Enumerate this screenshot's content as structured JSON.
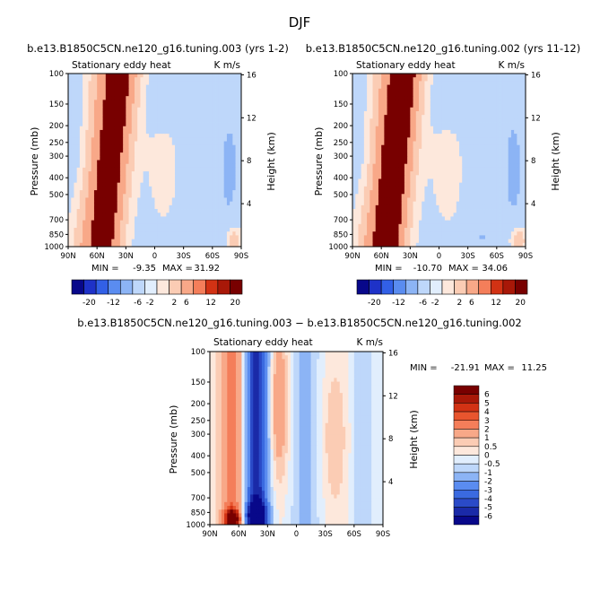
{
  "figure": {
    "title": "DJF"
  },
  "chart_data": [
    {
      "type": "heatmap",
      "id": "p1",
      "title": "b.e13.B1850C5CN.ne120_g16.tuning.003 (yrs 1-2)",
      "left_label": "Stationary eddy heat",
      "right_label": "K m/s",
      "xlabel": "",
      "ylabel": "Pressure (mb)",
      "ylabel_right": "Height (km)",
      "x_ticks": [
        "90N",
        "60N",
        "30N",
        "0",
        "30S",
        "60S",
        "90S"
      ],
      "y_ticks": [
        "100",
        "150",
        "200",
        "250",
        "300",
        "400",
        "500",
        "700",
        "850",
        "1000"
      ],
      "height_ticks": [
        "16",
        "12",
        "8",
        "4"
      ],
      "ylim": [
        1000,
        100
      ],
      "min_label": "MIN =",
      "min_value": "-9.35",
      "max_label": "MAX =",
      "max_value": "31.92",
      "levels": [
        "-20",
        "-12",
        "-6",
        "-2",
        "2",
        "6",
        "12",
        "20"
      ]
    },
    {
      "type": "heatmap",
      "id": "p2",
      "title": "b.e13.B1850C5CN.ne120_g16.tuning.002 (yrs 11-12)",
      "left_label": "Stationary eddy heat",
      "right_label": "K m/s",
      "xlabel": "",
      "ylabel": "Pressure (mb)",
      "ylabel_right": "Height (km)",
      "x_ticks": [
        "90N",
        "60N",
        "30N",
        "0",
        "30S",
        "60S",
        "90S"
      ],
      "y_ticks": [
        "100",
        "150",
        "200",
        "250",
        "300",
        "400",
        "500",
        "700",
        "850",
        "1000"
      ],
      "height_ticks": [
        "16",
        "12",
        "8",
        "4"
      ],
      "ylim": [
        1000,
        100
      ],
      "min_label": "MIN =",
      "min_value": "-10.70",
      "max_label": "MAX =",
      "max_value": "34.06",
      "levels": [
        "-20",
        "-12",
        "-6",
        "-2",
        "2",
        "6",
        "12",
        "20"
      ]
    },
    {
      "type": "heatmap",
      "id": "p3",
      "title": "b.e13.B1850C5CN.ne120_g16.tuning.003 − b.e13.B1850C5CN.ne120_g16.tuning.002",
      "left_label": "Stationary eddy heat",
      "right_label": "K m/s",
      "xlabel": "",
      "ylabel": "Pressure (mb)",
      "ylabel_right": "Height (km)",
      "x_ticks": [
        "90N",
        "60N",
        "30N",
        "0",
        "30S",
        "60S",
        "90S"
      ],
      "y_ticks": [
        "100",
        "150",
        "200",
        "250",
        "300",
        "400",
        "500",
        "700",
        "850",
        "1000"
      ],
      "height_ticks": [
        "16",
        "12",
        "8",
        "4"
      ],
      "ylim": [
        1000,
        100
      ],
      "min_label": "MIN =",
      "min_value": "-21.91",
      "max_label": "MAX =",
      "max_value": "11.25",
      "levels": [
        "6",
        "5",
        "4",
        "3",
        "2",
        "1",
        "0.5",
        "0",
        "-0.5",
        "-1",
        "-2",
        "-3",
        "-4",
        "-5",
        "-6"
      ]
    }
  ],
  "colors": {
    "ramp": [
      "#08088a",
      "#1e32c8",
      "#3260e6",
      "#5a8cf0",
      "#8cb4f5",
      "#bed7fa",
      "#e1eefd",
      "#fde8dc",
      "#fbccb4",
      "#f8a888",
      "#f47e5a",
      "#e8552e",
      "#d23214",
      "#a81808",
      "#780000"
    ]
  }
}
